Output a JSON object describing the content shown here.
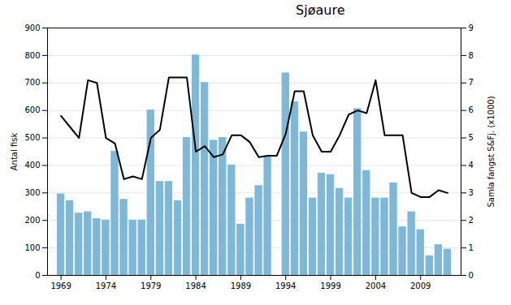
{
  "chart_data": {
    "type": "bar",
    "title": "Sjøaure",
    "ylabel": "Antal fisk",
    "y2label": "Samla fangst S&Fj. (x1000)",
    "x": [
      1969,
      1970,
      1971,
      1972,
      1973,
      1974,
      1975,
      1976,
      1977,
      1978,
      1979,
      1980,
      1981,
      1982,
      1983,
      1984,
      1985,
      1986,
      1987,
      1988,
      1989,
      1990,
      1991,
      1992,
      1993,
      1994,
      1995,
      1996,
      1997,
      1998,
      1999,
      2000,
      2001,
      2002,
      2003,
      2004,
      2005,
      2006,
      2007,
      2008,
      2009,
      2010,
      2011,
      2012
    ],
    "series": [
      {
        "type": "bar",
        "color": "#7eb8d9",
        "values": [
          295,
          270,
          225,
          230,
          205,
          200,
          450,
          275,
          200,
          200,
          600,
          340,
          340,
          270,
          500,
          800,
          700,
          490,
          500,
          400,
          185,
          280,
          325,
          430,
          0,
          735,
          630,
          520,
          280,
          370,
          365,
          315,
          280,
          605,
          380,
          280,
          280,
          335,
          175,
          230,
          165,
          70,
          110,
          94
        ]
      },
      {
        "type": "line",
        "color": "#000000",
        "axis": "y2",
        "values": [
          5.8,
          5.4,
          5.0,
          7.1,
          7.0,
          5.0,
          4.8,
          3.5,
          3.6,
          3.5,
          5.0,
          5.3,
          7.2,
          7.2,
          7.2,
          4.5,
          4.7,
          4.3,
          4.4,
          5.1,
          5.1,
          4.85,
          4.3,
          4.35,
          4.35,
          5.15,
          6.7,
          6.7,
          5.1,
          4.5,
          4.5,
          5.1,
          5.85,
          6.0,
          5.9,
          7.1,
          5.1,
          5.1,
          5.1,
          3.0,
          2.85,
          2.85,
          3.1,
          3.0
        ]
      }
    ],
    "xlim": [
      1967.5,
      2013.5
    ],
    "xticks": [
      1969,
      1974,
      1979,
      1984,
      1989,
      1994,
      1999,
      2004,
      2009
    ],
    "ylim": [
      0,
      900
    ],
    "yticks": [
      0,
      100,
      200,
      300,
      400,
      500,
      600,
      700,
      800,
      900
    ],
    "y2lim": [
      0,
      9
    ],
    "y2ticks": [
      0,
      1,
      2,
      3,
      4,
      5,
      6,
      7,
      8,
      9
    ],
    "grid": true
  }
}
